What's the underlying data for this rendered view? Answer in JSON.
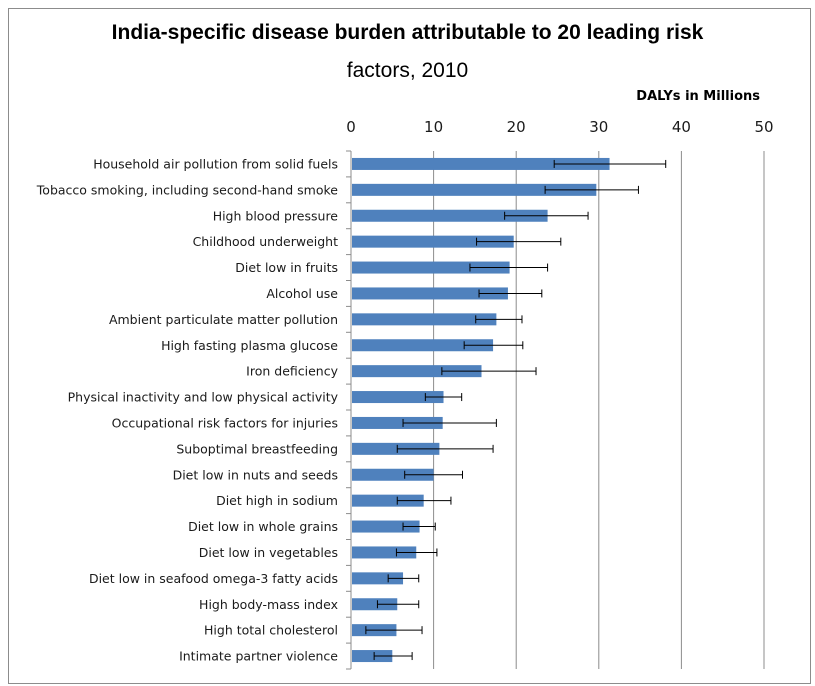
{
  "chart_data": {
    "type": "bar",
    "orientation": "horizontal",
    "title": "India-specific disease burden attributable to 20 leading risk",
    "title_partial_line": "factors, 2010",
    "unit_label": "DALYs in Millions",
    "xlim": [
      0,
      50
    ],
    "xticks": [
      "0",
      "10",
      "20",
      "30",
      "40",
      "50"
    ],
    "grid": "vertical",
    "bar_color": "#4f81bd",
    "categories": [
      "Household air pollution from solid fuels",
      "Tobacco smoking, including second-hand smoke",
      "High blood pressure",
      "Childhood underweight",
      "Diet low in fruits",
      "Alcohol use",
      "Ambient particulate matter pollution",
      "High fasting plasma glucose",
      "Iron deficiency",
      "Physical inactivity and low physical activity",
      "Occupational risk factors for injuries",
      "Suboptimal breastfeeding",
      "Diet low in nuts and seeds",
      "Diet high in sodium",
      "Diet low in whole grains",
      "Diet low in vegetables",
      "Diet low in seafood omega-3 fatty acids",
      "High body-mass index",
      "High total cholesterol",
      "Intimate partner violence"
    ],
    "values": [
      31.3,
      29.7,
      23.8,
      19.7,
      19.2,
      19.0,
      17.6,
      17.2,
      15.8,
      11.2,
      11.1,
      10.7,
      10.0,
      8.8,
      8.3,
      7.9,
      6.3,
      5.6,
      5.5,
      5.0
    ],
    "error_low": [
      24.6,
      23.5,
      18.6,
      15.2,
      14.4,
      15.5,
      15.1,
      13.7,
      11.0,
      9.0,
      6.3,
      5.6,
      6.5,
      5.6,
      6.3,
      5.5,
      4.5,
      3.2,
      1.8,
      2.8
    ],
    "error_high": [
      38.1,
      34.8,
      28.7,
      25.4,
      23.8,
      23.1,
      20.7,
      20.8,
      22.4,
      13.4,
      17.6,
      17.2,
      13.5,
      12.1,
      10.2,
      10.4,
      8.2,
      8.2,
      8.6,
      7.4
    ]
  }
}
